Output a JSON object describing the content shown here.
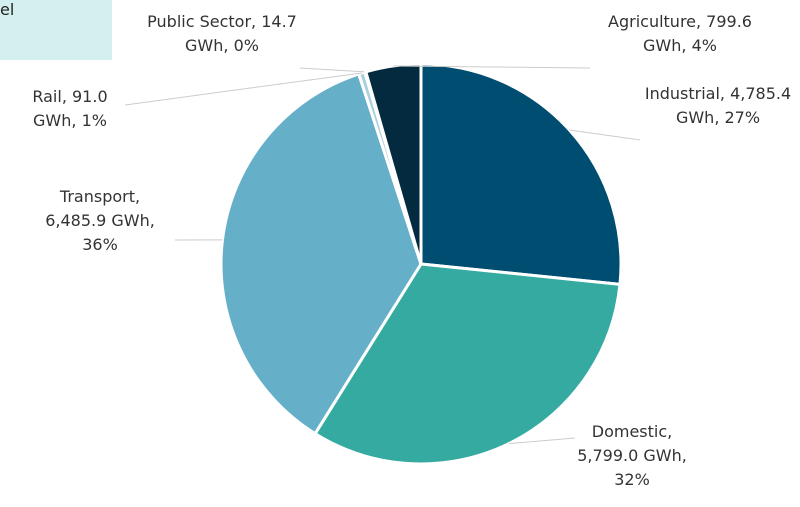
{
  "chart_data": {
    "type": "pie",
    "partial_text": "el",
    "values": [
      4785.4,
      5799.0,
      6485.9,
      91.0,
      14.7,
      799.6
    ],
    "value_labels": [
      "Industrial, 4,785.4  GWh, 27%",
      "Domestic, 5,799.0 GWh, 32%",
      "Transport, 6,485.9 GWh, 36%",
      "Rail,  91.0 GWh, 1%",
      "Public Sector, 14.7 GWh, 0%",
      "Agriculture, 799.6 GWh, 4%"
    ],
    "colors": [
      "#004d72",
      "#35aaa1",
      "#66afc9",
      "#a9d0e0",
      "#8fc0d5",
      "#032a3f"
    ]
  }
}
